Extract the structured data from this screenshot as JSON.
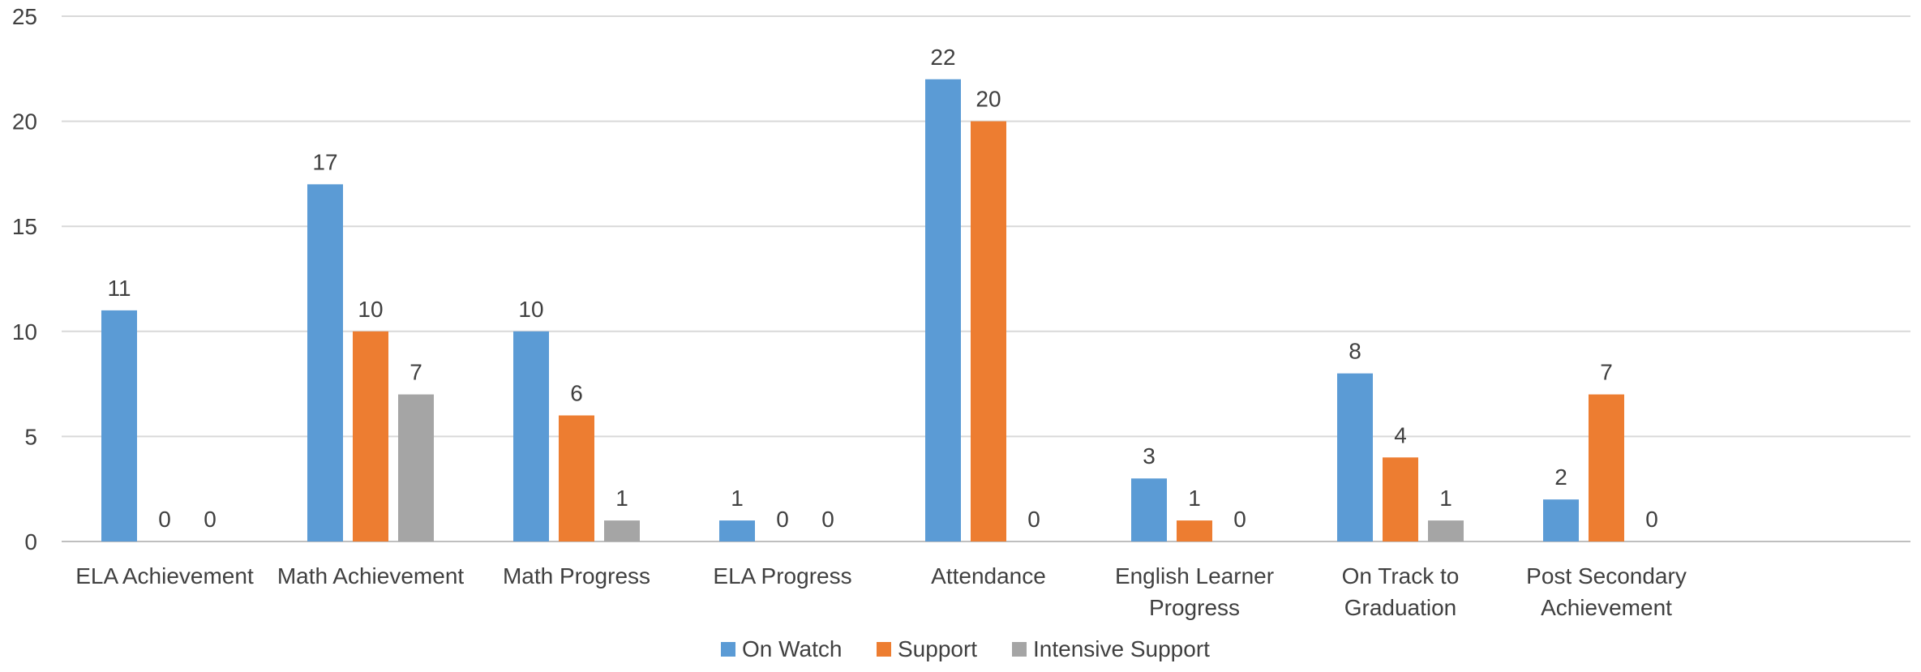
{
  "chart_data": {
    "type": "bar",
    "title": "",
    "xlabel": "",
    "ylabel": "",
    "ylim": [
      0,
      25
    ],
    "yticks": [
      0,
      5,
      10,
      15,
      20,
      25
    ],
    "grid": true,
    "legend_position": "bottom",
    "categories": [
      [
        "ELA Achievement"
      ],
      [
        "Math Achievement"
      ],
      [
        "Math Progress"
      ],
      [
        "ELA Progress"
      ],
      [
        "Attendance"
      ],
      [
        "English Learner",
        "Progress"
      ],
      [
        "On Track to",
        "Graduation"
      ],
      [
        "Post Secondary",
        "Achievement"
      ]
    ],
    "series": [
      {
        "name": "On Watch",
        "color": "#5B9BD5",
        "values": [
          11,
          17,
          10,
          1,
          22,
          3,
          8,
          2
        ]
      },
      {
        "name": "Support",
        "color": "#ED7D31",
        "values": [
          0,
          10,
          6,
          0,
          20,
          1,
          4,
          7
        ]
      },
      {
        "name": "Intensive Support",
        "color": "#A5A5A5",
        "values": [
          0,
          7,
          1,
          0,
          0,
          0,
          1,
          0
        ]
      }
    ]
  }
}
